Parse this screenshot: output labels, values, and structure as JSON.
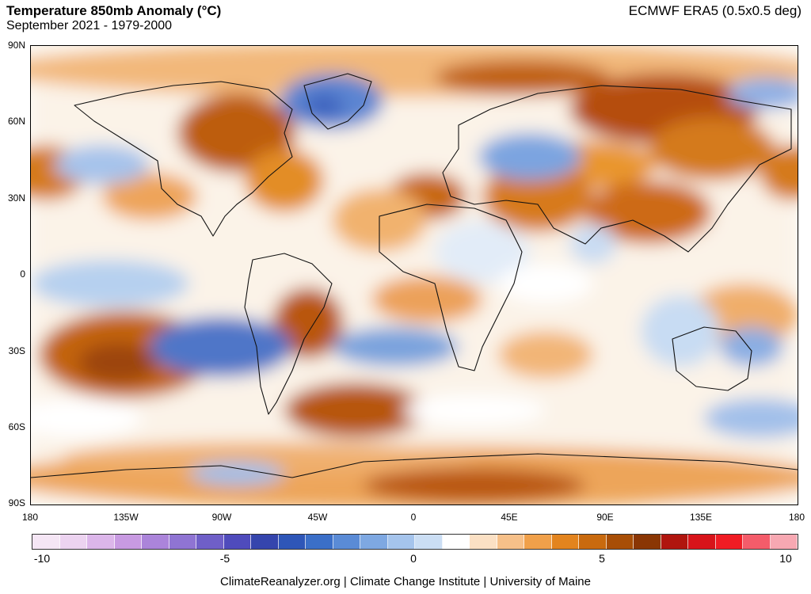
{
  "header": {
    "title": "Temperature 850mb Anomaly (°C)",
    "subtitle": "September 2021 - 1979-2000",
    "source": "ECMWF ERA5 (0.5x0.5 deg)"
  },
  "axes": {
    "lat_labels": [
      "90N",
      "60N",
      "30N",
      "0",
      "30S",
      "60S",
      "90S"
    ],
    "lon_labels": [
      "180",
      "135W",
      "90W",
      "45W",
      "0",
      "45E",
      "90E",
      "135E",
      "180"
    ]
  },
  "colorbar": {
    "min": -10,
    "max": 10,
    "labels": [
      "-10",
      "-5",
      "0",
      "5",
      "10"
    ],
    "colors": [
      "#f5e6f5",
      "#ecd3f0",
      "#dcb6ea",
      "#c89ae2",
      "#ab84da",
      "#8f74d3",
      "#6f5fc8",
      "#4f4bbc",
      "#3545ad",
      "#2e56b8",
      "#3b6fc8",
      "#5a8bd6",
      "#7ea8e2",
      "#a5c4ec",
      "#cbdef4",
      "#ffffff",
      "#fbe0c4",
      "#f6c089",
      "#f0a04a",
      "#e3841e",
      "#c96a0e",
      "#a84e06",
      "#8a3604",
      "#b0150e",
      "#d8141a",
      "#f01c24",
      "#f45c6a",
      "#f7a8b2"
    ]
  },
  "footer": "ClimateReanalyzer.org | Climate Change Institute | University of Maine"
}
